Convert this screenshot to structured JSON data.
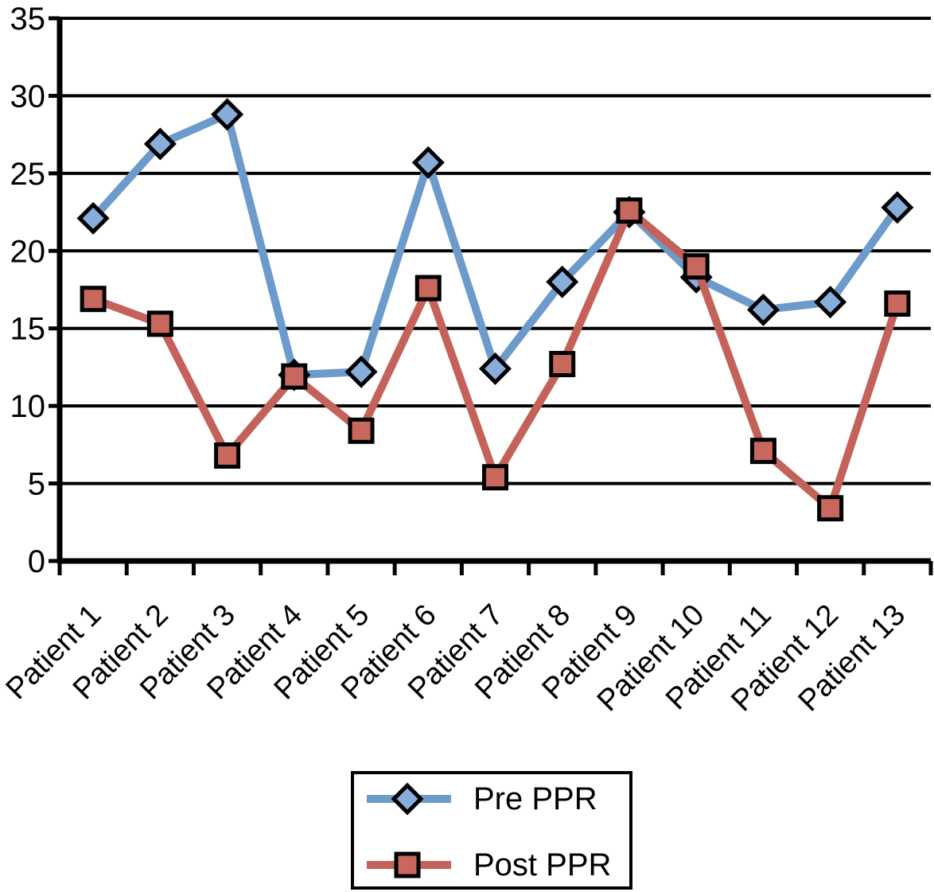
{
  "chart_data": {
    "type": "line",
    "title": "",
    "xlabel": "",
    "ylabel": "",
    "categories": [
      "Patient 1",
      "Patient 2",
      "Patient 3",
      "Patient 4",
      "Patient 5",
      "Patient 6",
      "Patient 7",
      "Patient 8",
      "Patient 9",
      "Patient 10",
      "Patient 11",
      "Patient 12",
      "Patient 13"
    ],
    "series": [
      {
        "name": "Pre PPR",
        "marker": "diamond",
        "line_color": "#6B9ACB",
        "fill_color": "#87ADDB",
        "values": [
          22.1,
          26.9,
          28.8,
          12.0,
          12.2,
          25.7,
          12.4,
          18.0,
          22.5,
          18.3,
          16.2,
          16.7,
          22.8
        ]
      },
      {
        "name": "Post PPR",
        "marker": "square",
        "line_color": "#C4625A",
        "fill_color": "#C7675D",
        "values": [
          16.9,
          15.3,
          6.8,
          11.9,
          8.4,
          17.6,
          5.4,
          12.7,
          22.6,
          19.0,
          7.1,
          3.4,
          16.6
        ]
      }
    ],
    "ylim": [
      0,
      35
    ],
    "ytick_step": 5,
    "yticks": [
      0,
      5,
      10,
      15,
      20,
      25,
      30,
      35
    ],
    "grid": "horizontal",
    "gridline_color": "#000000",
    "axis_color": "#000000",
    "marker_outline_color": "#000000",
    "legend_position": "bottom-center",
    "legend_border_color": "#000000"
  }
}
